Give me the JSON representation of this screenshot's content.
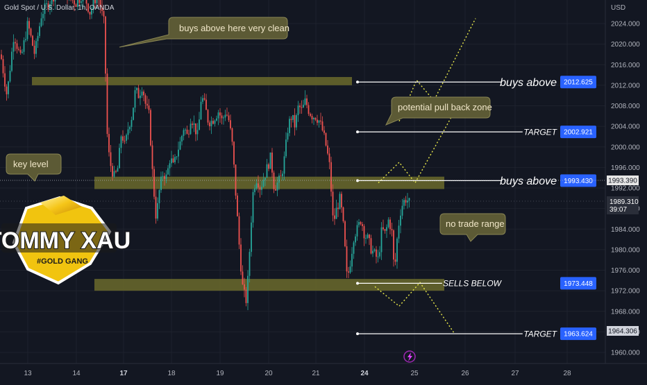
{
  "header": {
    "symbol": "Gold Spot / U.S. Dollar, 1h, OANDA"
  },
  "axis": {
    "unit": "USD",
    "ticks": [
      "2024.000",
      "2020.000",
      "2016.000",
      "2012.000",
      "2008.000",
      "2004.000",
      "2000.000",
      "1996.000",
      "1992.000",
      "1988.000",
      "1984.000",
      "1980.000",
      "1976.000",
      "1972.000",
      "1968.000",
      "1964.000",
      "1960.000"
    ],
    "current_price": "1989.310",
    "countdown": "39:07",
    "crosshair_price": "1993.390",
    "target_marker_price": "1964.306"
  },
  "dates": [
    {
      "label": "13",
      "bold": false
    },
    {
      "label": "14",
      "bold": false
    },
    {
      "label": "17",
      "bold": true
    },
    {
      "label": "18",
      "bold": false
    },
    {
      "label": "19",
      "bold": false
    },
    {
      "label": "20",
      "bold": false
    },
    {
      "label": "21",
      "bold": false
    },
    {
      "label": "24",
      "bold": true
    },
    {
      "label": "25",
      "bold": false
    },
    {
      "label": "26",
      "bold": false
    },
    {
      "label": "27",
      "bold": false
    },
    {
      "label": "28",
      "bold": false
    }
  ],
  "levels": [
    {
      "label": "buys above",
      "price": "2012.625",
      "value": 2012.625
    },
    {
      "label": "TARGET",
      "price": "2002.921",
      "value": 2002.921
    },
    {
      "label": "buys above",
      "price": "1993.430",
      "value": 1993.43
    },
    {
      "label": "SELLS BELOW",
      "price": "1973.448",
      "value": 1973.448
    },
    {
      "label": "TARGET",
      "price": "1963.624",
      "value": 1963.624
    }
  ],
  "annotations": {
    "buys_clean": "buys above here very clean",
    "pullback": "potential pull back zone",
    "key_level": "key level",
    "no_trade": "no trade range"
  },
  "logo": {
    "name": "TOMMY XAU",
    "tag": "#GOLD GANG"
  },
  "colors": {
    "background": "#131722",
    "up": "#26a69a",
    "down": "#ef5350",
    "zone": "#6b6a2c",
    "tag_blue": "#2962ff",
    "bubble": "#5c5a35",
    "projection": "#e8e84a"
  },
  "chart_data": {
    "type": "candlestick",
    "symbol": "Gold Spot / U.S. Dollar, 1h, OANDA",
    "y_unit": "USD",
    "ylim": [
      1958,
      2028
    ],
    "x_date_labels": [
      "13",
      "14",
      "17",
      "18",
      "19",
      "20",
      "21",
      "24",
      "25",
      "26",
      "27",
      "28"
    ],
    "zones": [
      {
        "from": 2012.0,
        "to": 2013.6
      },
      {
        "from": 1991.8,
        "to": 1994.2
      },
      {
        "from": 1972.0,
        "to": 1974.3
      }
    ],
    "price_path": [
      [
        1,
        2018
      ],
      [
        10,
        2010
      ],
      [
        20,
        2022
      ],
      [
        30,
        2017
      ],
      [
        40,
        2024
      ],
      [
        50,
        2018
      ],
      [
        60,
        2026
      ],
      [
        70,
        2028
      ],
      [
        80,
        2030
      ],
      [
        90,
        2031
      ],
      [
        100,
        2029
      ],
      [
        110,
        2028
      ],
      [
        120,
        2030
      ],
      [
        130,
        2026
      ],
      [
        140,
        2030
      ],
      [
        150,
        2024
      ],
      [
        155,
        2000
      ],
      [
        160,
        1996
      ],
      [
        165,
        1994
      ],
      [
        170,
        1996
      ],
      [
        175,
        2003
      ],
      [
        180,
        2000
      ],
      [
        185,
        2004
      ],
      [
        190,
        2006
      ],
      [
        195,
        2011
      ],
      [
        200,
        2010
      ],
      [
        205,
        2012
      ],
      [
        210,
        2008
      ],
      [
        215,
        2006
      ],
      [
        220,
        1994
      ],
      [
        225,
        1986
      ],
      [
        230,
        1992
      ],
      [
        235,
        1995
      ],
      [
        240,
        1994
      ],
      [
        245,
        1998
      ],
      [
        250,
        1996
      ],
      [
        255,
        1999
      ],
      [
        260,
        2001
      ],
      [
        265,
        2004
      ],
      [
        270,
        2002
      ],
      [
        275,
        2006
      ],
      [
        280,
        2004
      ],
      [
        285,
        2002
      ],
      [
        290,
        2010
      ],
      [
        295,
        2008
      ],
      [
        300,
        2005
      ],
      [
        305,
        2005
      ],
      [
        310,
        2006
      ],
      [
        315,
        2007
      ],
      [
        320,
        2005
      ],
      [
        325,
        2007
      ],
      [
        330,
        2005
      ],
      [
        335,
        2000
      ],
      [
        340,
        1990
      ],
      [
        345,
        1980
      ],
      [
        350,
        1972
      ],
      [
        355,
        1970
      ],
      [
        358,
        1976
      ],
      [
        362,
        1986
      ],
      [
        365,
        1992
      ],
      [
        370,
        1994
      ],
      [
        375,
        1992
      ],
      [
        380,
        1994
      ],
      [
        385,
        1996
      ],
      [
        390,
        1998
      ],
      [
        395,
        1992
      ],
      [
        400,
        1993
      ],
      [
        405,
        1994
      ],
      [
        410,
        1998
      ],
      [
        415,
        2004
      ],
      [
        420,
        2006
      ],
      [
        425,
        2004
      ],
      [
        430,
        2008
      ],
      [
        435,
        2007
      ],
      [
        440,
        2009
      ],
      [
        445,
        2007
      ],
      [
        450,
        2006
      ],
      [
        455,
        2006
      ],
      [
        460,
        2005
      ],
      [
        465,
        2003
      ],
      [
        470,
        2000
      ],
      [
        475,
        1996
      ],
      [
        480,
        1985
      ],
      [
        485,
        1988
      ],
      [
        490,
        1990
      ],
      [
        495,
        1984
      ],
      [
        500,
        1974
      ],
      [
        505,
        1978
      ],
      [
        510,
        1983
      ],
      [
        515,
        1984
      ],
      [
        520,
        1986
      ],
      [
        525,
        1983
      ],
      [
        530,
        1982
      ],
      [
        535,
        1980
      ],
      [
        540,
        1979
      ],
      [
        545,
        1978
      ],
      [
        550,
        1984
      ],
      [
        555,
        1983
      ],
      [
        560,
        1986
      ],
      [
        565,
        1983
      ],
      [
        568,
        1975
      ],
      [
        572,
        1982
      ],
      [
        576,
        1987
      ],
      [
        580,
        1989
      ],
      [
        585,
        1990
      ],
      [
        590,
        1989
      ]
    ],
    "projections": [
      {
        "name": "top",
        "points": [
          [
            575,
            2005
          ],
          [
            600,
            2013
          ],
          [
            625,
            2009
          ],
          [
            685,
            2025
          ]
        ]
      },
      {
        "name": "middle",
        "points": [
          [
            545,
            1993
          ],
          [
            575,
            1997
          ],
          [
            598,
            1993
          ],
          [
            655,
            2007
          ]
        ]
      },
      {
        "name": "bottom",
        "points": [
          [
            540,
            1972.8
          ],
          [
            575,
            1969.0
          ],
          [
            605,
            1973.6
          ],
          [
            655,
            1963.6
          ]
        ]
      }
    ]
  }
}
